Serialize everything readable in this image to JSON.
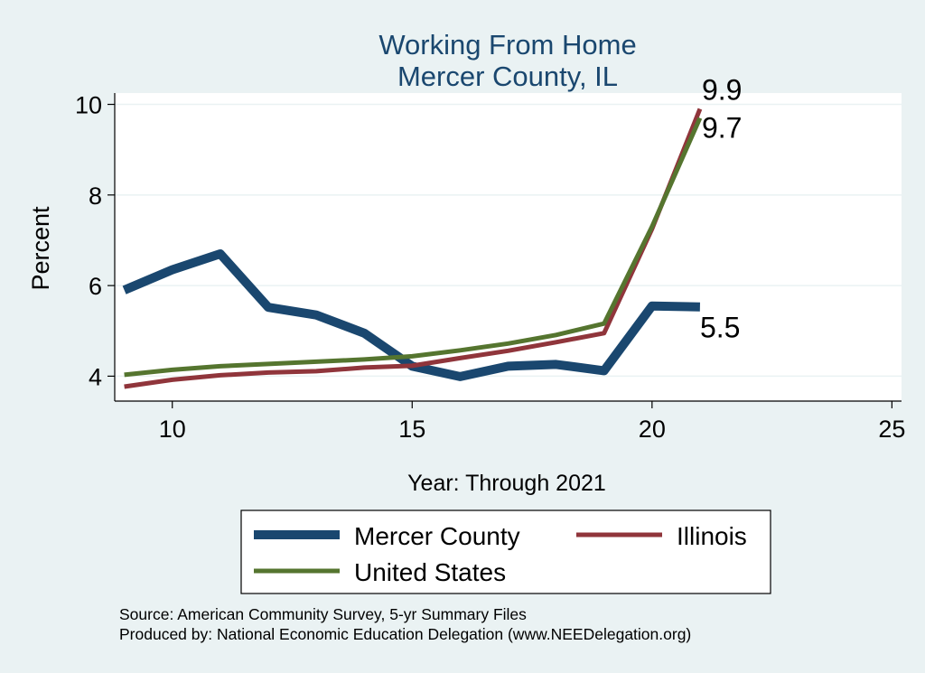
{
  "chart_data": {
    "type": "line",
    "title": [
      "Working From Home",
      "Mercer County, IL"
    ],
    "xlabel": "Year: Through 2021",
    "ylabel": "Percent",
    "xlim": [
      8.8,
      25.2
    ],
    "ylim": [
      3.45,
      10.25
    ],
    "xticks": [
      10,
      15,
      20,
      25
    ],
    "yticks": [
      4,
      6,
      8,
      10
    ],
    "grid": true,
    "legend_position": "bottom",
    "series": [
      {
        "name": "Mercer County",
        "color": "#1a476f",
        "x": [
          9,
          10,
          11,
          12,
          13,
          14,
          15,
          16,
          17,
          18,
          19,
          20,
          21
        ],
        "values": [
          5.9,
          6.35,
          6.7,
          5.52,
          5.35,
          4.95,
          4.22,
          3.99,
          4.22,
          4.26,
          4.12,
          5.55,
          5.53
        ],
        "end_label": "5.5"
      },
      {
        "name": "Illinois",
        "color": "#90353b",
        "x": [
          9,
          10,
          11,
          12,
          13,
          14,
          15,
          16,
          17,
          18,
          19,
          20,
          21
        ],
        "values": [
          3.77,
          3.92,
          4.02,
          4.08,
          4.11,
          4.19,
          4.23,
          4.4,
          4.56,
          4.75,
          4.95,
          7.25,
          9.9
        ],
        "end_label": "9.9"
      },
      {
        "name": "United States",
        "color": "#55752f",
        "x": [
          9,
          10,
          11,
          12,
          13,
          14,
          15,
          16,
          17,
          18,
          19,
          20,
          21
        ],
        "values": [
          4.03,
          4.14,
          4.22,
          4.27,
          4.32,
          4.37,
          4.44,
          4.57,
          4.72,
          4.91,
          5.16,
          7.3,
          9.7
        ],
        "end_label": "9.7"
      }
    ],
    "notes": [
      "Source: American Community Survey, 5-yr Summary Files",
      "Produced by: National Economic Education Delegation (www.NEEDelegation.org)"
    ]
  }
}
